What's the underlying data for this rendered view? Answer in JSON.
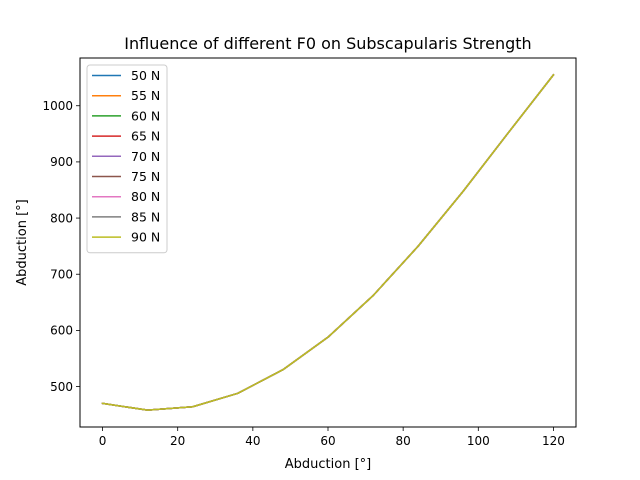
{
  "chart_data": {
    "type": "line",
    "title": "Influence of different F0 on Subscapularis Strength",
    "xlabel": "Abduction [°]",
    "ylabel": "Abduction [°]",
    "xlim": [
      -6,
      126
    ],
    "ylim": [
      428,
      1085
    ],
    "xticks": [
      0,
      20,
      40,
      60,
      80,
      100,
      120
    ],
    "yticks": [
      500,
      600,
      700,
      800,
      900,
      1000
    ],
    "grid": false,
    "legend_position": "upper left",
    "x": [
      0,
      12,
      24,
      36,
      48,
      60,
      72,
      84,
      96,
      108,
      120
    ],
    "series": [
      {
        "name": "50 N",
        "color": "#1f77b4",
        "values": [
          470,
          458,
          464,
          488,
          530,
          588,
          662,
          750,
          848,
          952,
          1055
        ]
      },
      {
        "name": "55 N",
        "color": "#ff7f0e",
        "values": [
          470,
          458,
          464,
          488,
          530,
          588,
          662,
          750,
          848,
          952,
          1055
        ]
      },
      {
        "name": "60 N",
        "color": "#2ca02c",
        "values": [
          470,
          458,
          464,
          488,
          530,
          588,
          662,
          750,
          848,
          952,
          1055
        ]
      },
      {
        "name": "65 N",
        "color": "#d62728",
        "values": [
          470,
          458,
          464,
          488,
          530,
          588,
          662,
          750,
          848,
          952,
          1055
        ]
      },
      {
        "name": "70 N",
        "color": "#9467bd",
        "values": [
          470,
          458,
          464,
          488,
          530,
          588,
          662,
          750,
          848,
          952,
          1055
        ]
      },
      {
        "name": "75 N",
        "color": "#8c564b",
        "values": [
          470,
          458,
          464,
          488,
          530,
          588,
          662,
          750,
          848,
          952,
          1055
        ]
      },
      {
        "name": "80 N",
        "color": "#e377c2",
        "values": [
          470,
          458,
          464,
          488,
          530,
          588,
          662,
          750,
          848,
          952,
          1055
        ]
      },
      {
        "name": "85 N",
        "color": "#7f7f7f",
        "values": [
          470,
          458,
          464,
          488,
          530,
          588,
          662,
          750,
          848,
          952,
          1055
        ]
      },
      {
        "name": "90 N",
        "color": "#bcbd22",
        "values": [
          470,
          458,
          464,
          488,
          530,
          588,
          662,
          750,
          848,
          952,
          1055
        ]
      }
    ]
  }
}
